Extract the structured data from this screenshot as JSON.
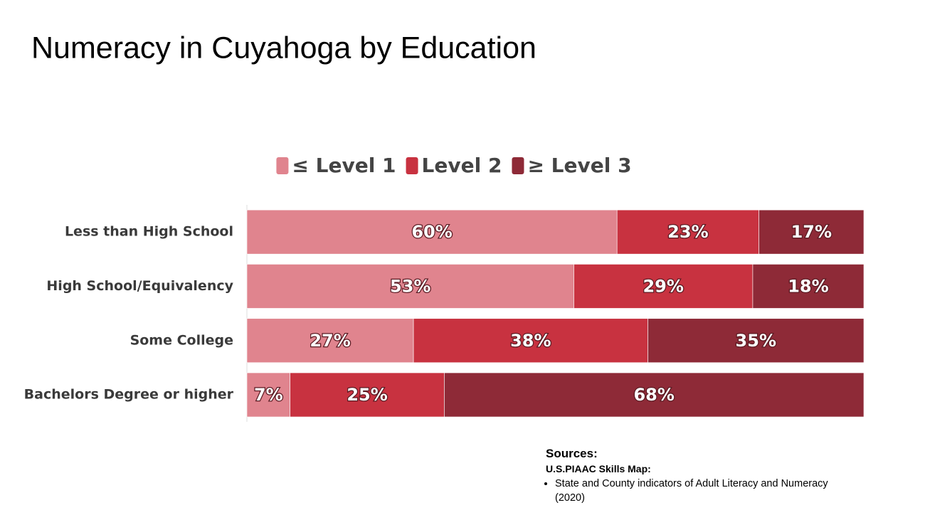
{
  "chart_data": {
    "type": "stacked-bar-horizontal",
    "title": "Numeracy in Cuyahoga by Education",
    "categories": [
      "Less than High School",
      "High School/Equivalency",
      "Some College",
      "Bachelors Degree or higher"
    ],
    "xlim": [
      0,
      100
    ],
    "series": [
      {
        "name": "≤ Level 1",
        "color": "#e0848e",
        "values": [
          60,
          53,
          27,
          7
        ],
        "value_labels": [
          "60%",
          "53%",
          "27%",
          "7%"
        ]
      },
      {
        "name": "Level 2",
        "color": "#c83240",
        "values": [
          23,
          29,
          38,
          25
        ],
        "value_labels": [
          "23%",
          "29%",
          "38%",
          "25%"
        ]
      },
      {
        "name": "≥ Level 3",
        "color": "#8e2a37",
        "values": [
          17,
          18,
          35,
          68
        ],
        "value_labels": [
          "17%",
          "18%",
          "35%",
          "68%"
        ]
      }
    ],
    "legend": "top"
  },
  "sources": {
    "title": "Sources:",
    "subtitle": "U.S.PIAAC Skills Map:",
    "items": [
      "State and County indicators of Adult Literacy and Numeracy (2020)"
    ]
  }
}
